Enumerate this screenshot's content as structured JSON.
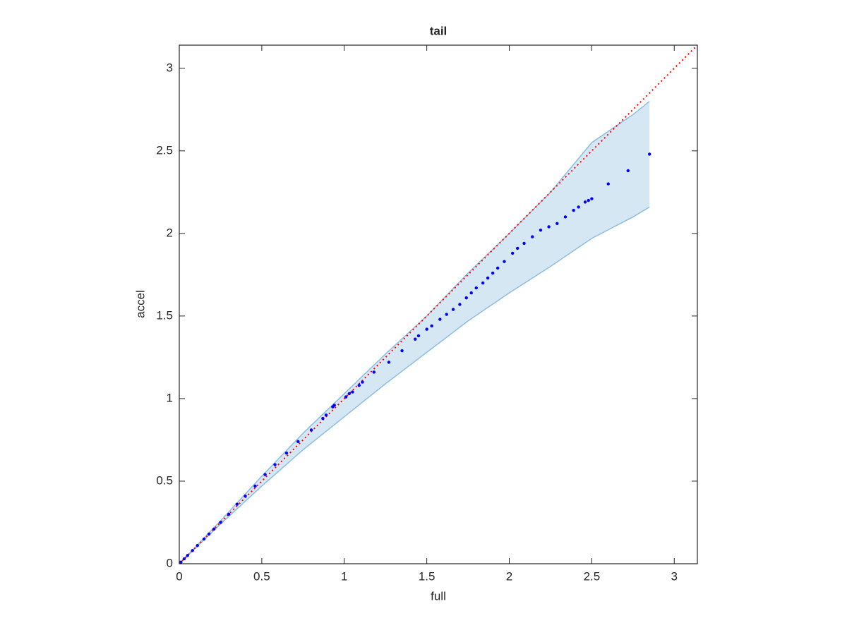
{
  "chart_data": {
    "type": "scatter",
    "title": "tail",
    "xlabel": "full",
    "ylabel": "accel",
    "xlim": [
      0,
      3.14
    ],
    "ylim": [
      0,
      3.14
    ],
    "xticks": [
      0,
      0.5,
      1,
      1.5,
      2,
      2.5,
      3
    ],
    "yticks": [
      0,
      0.5,
      1,
      1.5,
      2,
      2.5,
      3
    ],
    "box": true,
    "series": [
      {
        "type": "band",
        "color": "#d6e7f4",
        "edge_color": "#8dbde0",
        "x": [
          0,
          0.25,
          0.5,
          0.75,
          1,
          1.25,
          1.5,
          1.75,
          2,
          2.25,
          2.5,
          2.75,
          2.85
        ],
        "upper": [
          0,
          0.26,
          0.53,
          0.79,
          1.03,
          1.27,
          1.5,
          1.76,
          2.0,
          2.25,
          2.55,
          2.72,
          2.8
        ],
        "lower": [
          0,
          0.24,
          0.47,
          0.69,
          0.89,
          1.09,
          1.28,
          1.47,
          1.64,
          1.8,
          1.97,
          2.1,
          2.16
        ]
      },
      {
        "type": "line",
        "style": "dotted",
        "color": "#ff0000",
        "x": [
          0,
          3.14
        ],
        "y": [
          0,
          3.14
        ]
      },
      {
        "type": "scatter",
        "color": "#0000ff",
        "x": [
          0.01,
          0.03,
          0.05,
          0.08,
          0.11,
          0.15,
          0.18,
          0.21,
          0.25,
          0.3,
          0.35,
          0.4,
          0.46,
          0.52,
          0.58,
          0.65,
          0.72,
          0.8,
          0.87,
          0.89,
          0.93,
          0.94,
          1.01,
          1.03,
          1.05,
          1.09,
          1.11,
          1.18,
          1.27,
          1.35,
          1.43,
          1.45,
          1.5,
          1.53,
          1.58,
          1.62,
          1.66,
          1.7,
          1.74,
          1.77,
          1.8,
          1.84,
          1.87,
          1.9,
          1.93,
          1.97,
          2.02,
          2.05,
          2.09,
          2.14,
          2.19,
          2.24,
          2.29,
          2.34,
          2.39,
          2.42,
          2.46,
          2.48,
          2.5,
          2.6,
          2.72,
          2.85
        ],
        "y": [
          0.01,
          0.03,
          0.05,
          0.08,
          0.11,
          0.15,
          0.18,
          0.21,
          0.25,
          0.3,
          0.36,
          0.41,
          0.47,
          0.54,
          0.6,
          0.67,
          0.74,
          0.81,
          0.88,
          0.9,
          0.95,
          0.96,
          1.01,
          1.03,
          1.04,
          1.08,
          1.1,
          1.16,
          1.22,
          1.29,
          1.36,
          1.38,
          1.42,
          1.44,
          1.48,
          1.51,
          1.54,
          1.57,
          1.61,
          1.64,
          1.67,
          1.7,
          1.73,
          1.76,
          1.79,
          1.83,
          1.88,
          1.91,
          1.94,
          1.98,
          2.02,
          2.04,
          2.06,
          2.1,
          2.14,
          2.16,
          2.19,
          2.2,
          2.21,
          2.3,
          2.38,
          2.48
        ]
      }
    ]
  }
}
